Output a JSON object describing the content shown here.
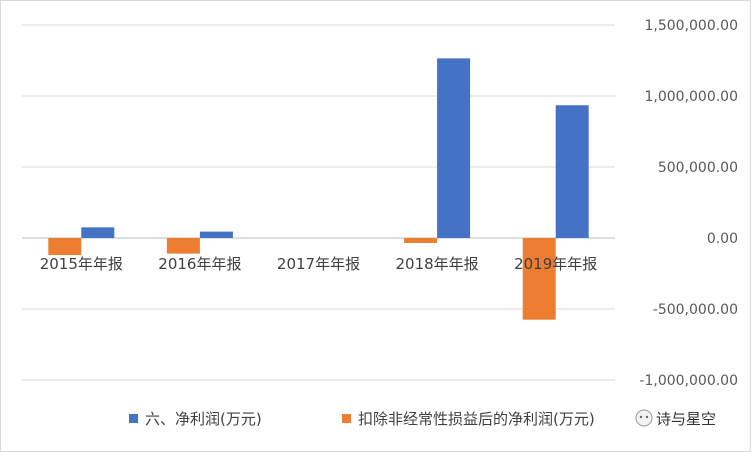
{
  "chart_data": {
    "type": "bar",
    "categories": [
      "2015年年报",
      "2016年年报",
      "2017年年报",
      "2018年年报",
      "2019年年报"
    ],
    "series": [
      {
        "name": "六、净利润(万元)",
        "color": "#4472c4",
        "values": [
          75000,
          45000,
          0,
          1265000,
          935000
        ]
      },
      {
        "name": "扣除非经常性损益后的净利润(万元)",
        "color": "#ed7d31",
        "values": [
          -120000,
          -110000,
          0,
          -35000,
          -575000
        ]
      }
    ],
    "ylim": [
      -1000000,
      1500000
    ],
    "yticks": [
      1500000,
      1000000,
      500000,
      0,
      -500000,
      -1000000
    ],
    "ytick_labels": [
      "1,500,000.00",
      "1,000,000.00",
      "500,000.00",
      "0.00",
      "-500,000.00",
      "-1,000,000.00"
    ],
    "y_axis_side": "right",
    "grid": true,
    "legend_position": "bottom"
  },
  "watermark": {
    "text": "诗与星空",
    "icon": "wechat-icon"
  }
}
